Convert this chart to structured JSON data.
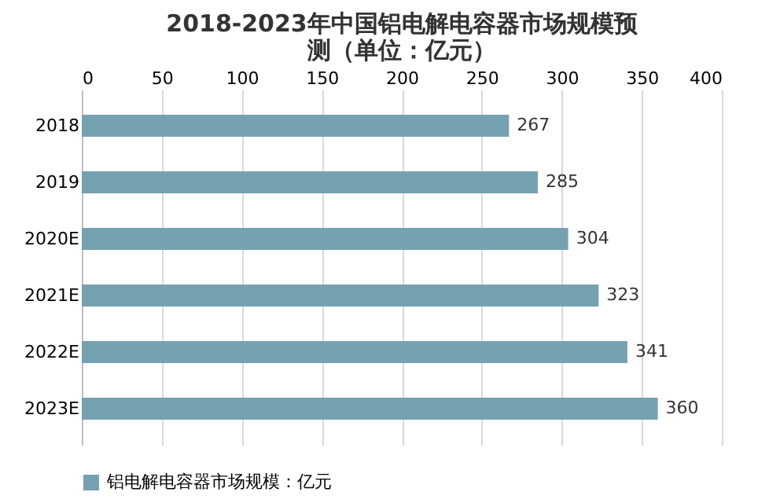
{
  "chart_data": {
    "type": "bar",
    "orientation": "horizontal",
    "title": "2018-2023年中国铝电解电容器市场规模预测（单位：亿元）",
    "categories": [
      "2018",
      "2019",
      "2020E",
      "2021E",
      "2022E",
      "2023E"
    ],
    "series": [
      {
        "name": "铝电解电容器市场规模：亿元",
        "color": "#76a1b1",
        "values": [
          267,
          285,
          304,
          323,
          341,
          360
        ]
      }
    ],
    "xlim": [
      0,
      400
    ],
    "xticks": [
      0,
      50,
      100,
      150,
      200,
      250,
      300,
      350,
      400
    ],
    "grid": "x",
    "legend": "bottom",
    "data_labels": true
  }
}
